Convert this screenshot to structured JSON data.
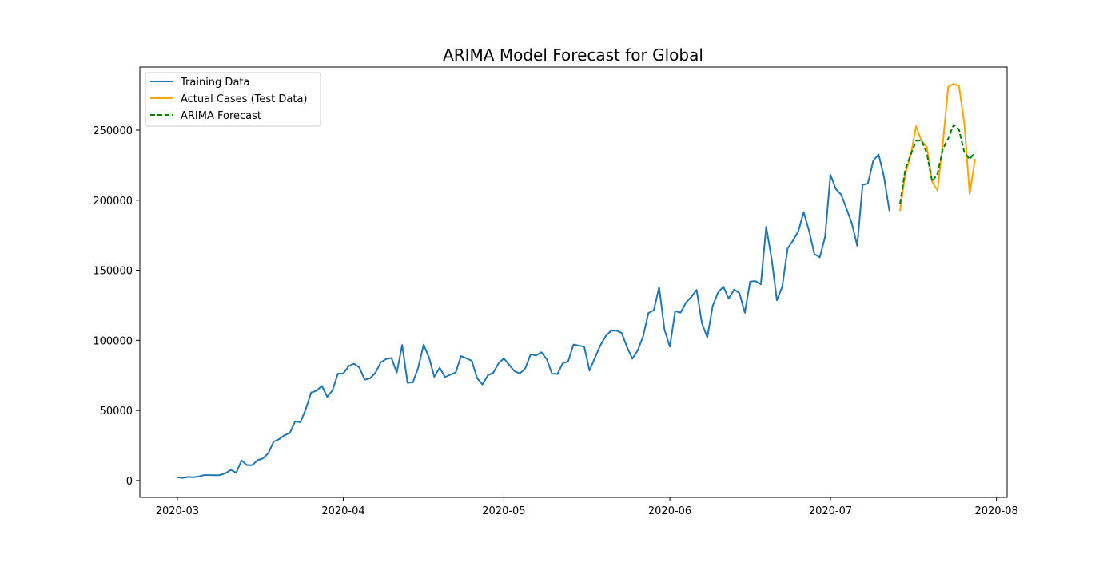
{
  "chart_data": {
    "type": "line",
    "title": "ARIMA Model Forecast for Global",
    "xlabel": "",
    "ylabel": "",
    "x_axis_type": "date",
    "xlim": [
      "2020-02-23",
      "2020-08-03"
    ],
    "ylim": [
      -12000,
      295000
    ],
    "grid": false,
    "legend_position": "top-left",
    "x_ticks": [
      {
        "value": "2020-03-01",
        "label": "2020-03"
      },
      {
        "value": "2020-04-01",
        "label": "2020-04"
      },
      {
        "value": "2020-05-01",
        "label": "2020-05"
      },
      {
        "value": "2020-06-01",
        "label": "2020-06"
      },
      {
        "value": "2020-07-01",
        "label": "2020-07"
      },
      {
        "value": "2020-08-01",
        "label": "2020-08"
      }
    ],
    "y_ticks": [
      0,
      50000,
      100000,
      150000,
      200000,
      250000
    ],
    "series": [
      {
        "name": "Training Data",
        "color": "#1f77b4",
        "style": "solid",
        "start_date": "2020-03-01",
        "values": [
          2300,
          1900,
          2600,
          2400,
          2900,
          3900,
          3900,
          3800,
          3900,
          5300,
          7600,
          5600,
          14400,
          11000,
          11000,
          14600,
          15800,
          19500,
          27800,
          29500,
          32300,
          33800,
          42100,
          41600,
          51000,
          62800,
          64100,
          67500,
          59700,
          64500,
          76300,
          76300,
          81600,
          83300,
          80700,
          71900,
          72900,
          76900,
          84300,
          86700,
          87400,
          77000,
          96700,
          69700,
          70000,
          80600,
          96900,
          88000,
          74000,
          80500,
          73800,
          75500,
          77100,
          88800,
          87200,
          85400,
          73000,
          68500,
          75100,
          76800,
          83600,
          87100,
          82400,
          77900,
          76400,
          80100,
          90000,
          89200,
          91500,
          86500,
          76200,
          76000,
          83700,
          84900,
          97000,
          96200,
          95500,
          78500,
          87600,
          96200,
          103000,
          106800,
          107000,
          105300,
          95200,
          86900,
          92800,
          102800,
          119500,
          121500,
          137900,
          107600,
          95500,
          120800,
          119800,
          126800,
          130900,
          136000,
          112100,
          102100,
          124500,
          134100,
          138300,
          129800,
          136200,
          133800,
          119700,
          141900,
          142300,
          140000,
          181000,
          158500,
          128600,
          138300,
          165500,
          171200,
          177900,
          191500,
          178300,
          161600,
          159200,
          173800,
          218200,
          208000,
          204000,
          194000,
          183400,
          167500,
          210900,
          211900,
          228300,
          232600,
          216700,
          192700
        ]
      },
      {
        "name": "Actual Cases (Test Data)",
        "color": "#ffa500",
        "style": "solid",
        "start_date": "2020-07-14",
        "values": [
          192700,
          219000,
          232000,
          252800,
          242400,
          238000,
          213000,
          207000,
          241000,
          281000,
          283000,
          281500,
          255000,
          204500,
          229000
        ]
      },
      {
        "name": "ARIMA Forecast",
        "color": "#008000",
        "style": "dashed",
        "start_date": "2020-07-14",
        "values": [
          197500,
          222300,
          232500,
          242300,
          242800,
          233500,
          213200,
          219000,
          236600,
          244000,
          253800,
          250500,
          234300,
          229200,
          234500
        ]
      }
    ]
  }
}
